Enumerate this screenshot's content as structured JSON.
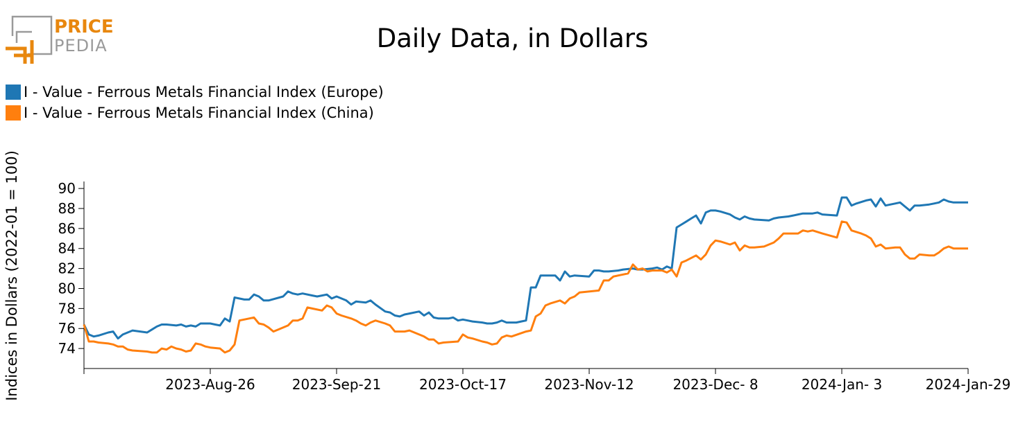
{
  "logo": {
    "line1": "PRICE",
    "line2": "PEDIA"
  },
  "chart_data": {
    "type": "line",
    "title": "Daily Data, in Dollars",
    "ylabel": "Indices in Dollars (2022-01 = 100)",
    "xlabel": "",
    "ylim": [
      72,
      90.7
    ],
    "yticks": [
      74,
      76,
      78,
      80,
      82,
      84,
      86,
      88,
      90
    ],
    "xlim": [
      0,
      182
    ],
    "xticks": [
      {
        "pos": 26,
        "label": "2023-Aug-26"
      },
      {
        "pos": 52,
        "label": "2023-Sep-21"
      },
      {
        "pos": 78,
        "label": "2023-Oct-17"
      },
      {
        "pos": 104,
        "label": "2023-Nov-12"
      },
      {
        "pos": 130,
        "label": "2023-Dec- 8"
      },
      {
        "pos": 156,
        "label": "2024-Jan- 3"
      },
      {
        "pos": 182,
        "label": "2024-Jan-29"
      }
    ],
    "legend_position": "top-left",
    "series": [
      {
        "name": "I - Value - Ferrous Metals Financial Index (Europe)",
        "color": "#1f77b4",
        "points": [
          [
            0,
            76.4
          ],
          [
            1,
            75.4
          ],
          [
            2,
            75.2
          ],
          [
            3,
            75.3
          ],
          [
            5,
            75.6
          ],
          [
            6,
            75.7
          ],
          [
            7,
            75.0
          ],
          [
            8,
            75.4
          ],
          [
            9,
            75.6
          ],
          [
            10,
            75.8
          ],
          [
            13,
            75.6
          ],
          [
            14,
            75.9
          ],
          [
            15,
            76.2
          ],
          [
            16,
            76.4
          ],
          [
            17,
            76.4
          ],
          [
            19,
            76.3
          ],
          [
            20,
            76.4
          ],
          [
            21,
            76.2
          ],
          [
            22,
            76.3
          ],
          [
            23,
            76.2
          ],
          [
            24,
            76.5
          ],
          [
            26,
            76.5
          ],
          [
            27,
            76.4
          ],
          [
            28,
            76.3
          ],
          [
            29,
            77.0
          ],
          [
            30,
            76.7
          ],
          [
            31,
            79.1
          ],
          [
            33,
            78.9
          ],
          [
            34,
            78.9
          ],
          [
            35,
            79.4
          ],
          [
            36,
            79.2
          ],
          [
            37,
            78.8
          ],
          [
            38,
            78.8
          ],
          [
            41,
            79.2
          ],
          [
            42,
            79.7
          ],
          [
            43,
            79.5
          ],
          [
            44,
            79.4
          ],
          [
            45,
            79.5
          ],
          [
            47,
            79.3
          ],
          [
            48,
            79.2
          ],
          [
            49,
            79.3
          ],
          [
            50,
            79.4
          ],
          [
            51,
            79.0
          ],
          [
            52,
            79.2
          ],
          [
            54,
            78.8
          ],
          [
            55,
            78.4
          ],
          [
            56,
            78.7
          ],
          [
            58,
            78.6
          ],
          [
            59,
            78.8
          ],
          [
            60,
            78.4
          ],
          [
            62,
            77.7
          ],
          [
            63,
            77.6
          ],
          [
            64,
            77.3
          ],
          [
            65,
            77.2
          ],
          [
            66,
            77.4
          ],
          [
            67,
            77.5
          ],
          [
            69,
            77.7
          ],
          [
            70,
            77.3
          ],
          [
            71,
            77.6
          ],
          [
            72,
            77.1
          ],
          [
            73,
            77.0
          ],
          [
            75,
            77.0
          ],
          [
            76,
            77.1
          ],
          [
            77,
            76.8
          ],
          [
            78,
            76.9
          ],
          [
            79,
            76.8
          ],
          [
            80,
            76.7
          ],
          [
            82,
            76.6
          ],
          [
            83,
            76.5
          ],
          [
            84,
            76.5
          ],
          [
            85,
            76.6
          ],
          [
            86,
            76.8
          ],
          [
            87,
            76.6
          ],
          [
            89,
            76.6
          ],
          [
            90,
            76.7
          ],
          [
            91,
            76.8
          ],
          [
            92,
            80.1
          ],
          [
            93,
            80.1
          ],
          [
            94,
            81.3
          ],
          [
            96,
            81.3
          ],
          [
            97,
            81.3
          ],
          [
            98,
            80.8
          ],
          [
            99,
            81.7
          ],
          [
            100,
            81.2
          ],
          [
            101,
            81.3
          ],
          [
            104,
            81.2
          ],
          [
            105,
            81.8
          ],
          [
            106,
            81.8
          ],
          [
            107,
            81.7
          ],
          [
            108,
            81.7
          ],
          [
            110,
            81.8
          ],
          [
            111,
            81.9
          ],
          [
            113,
            82.0
          ],
          [
            114,
            81.9
          ],
          [
            115,
            81.9
          ],
          [
            117,
            82.0
          ],
          [
            118,
            82.1
          ],
          [
            119,
            81.9
          ],
          [
            120,
            82.2
          ],
          [
            121,
            82.0
          ],
          [
            122,
            86.1
          ],
          [
            123,
            86.4
          ],
          [
            124,
            86.7
          ],
          [
            125,
            87.0
          ],
          [
            126,
            87.3
          ],
          [
            127,
            86.5
          ],
          [
            128,
            87.6
          ],
          [
            129,
            87.8
          ],
          [
            130,
            87.8
          ],
          [
            131,
            87.7
          ],
          [
            133,
            87.4
          ],
          [
            134,
            87.1
          ],
          [
            135,
            86.9
          ],
          [
            136,
            87.2
          ],
          [
            137,
            87.0
          ],
          [
            138,
            86.9
          ],
          [
            141,
            86.8
          ],
          [
            142,
            87.0
          ],
          [
            143,
            87.1
          ],
          [
            145,
            87.2
          ],
          [
            146,
            87.3
          ],
          [
            147,
            87.4
          ],
          [
            148,
            87.5
          ],
          [
            150,
            87.5
          ],
          [
            151,
            87.6
          ],
          [
            152,
            87.4
          ],
          [
            155,
            87.3
          ],
          [
            156,
            89.1
          ],
          [
            157,
            89.1
          ],
          [
            158,
            88.3
          ],
          [
            159,
            88.5
          ],
          [
            161,
            88.8
          ],
          [
            162,
            88.9
          ],
          [
            163,
            88.2
          ],
          [
            164,
            89.0
          ],
          [
            165,
            88.3
          ],
          [
            167,
            88.5
          ],
          [
            168,
            88.6
          ],
          [
            169,
            88.2
          ],
          [
            170,
            87.8
          ],
          [
            171,
            88.3
          ],
          [
            172,
            88.3
          ],
          [
            174,
            88.4
          ],
          [
            175,
            88.5
          ],
          [
            176,
            88.6
          ],
          [
            177,
            88.9
          ],
          [
            178,
            88.7
          ],
          [
            179,
            88.6
          ],
          [
            181,
            88.6
          ],
          [
            182,
            88.6
          ]
        ]
      },
      {
        "name": "I - Value - Ferrous Metals Financial Index (China)",
        "color": "#ff7f0e",
        "points": [
          [
            0,
            76.4
          ],
          [
            1,
            74.7
          ],
          [
            2,
            74.7
          ],
          [
            3,
            74.6
          ],
          [
            5,
            74.5
          ],
          [
            6,
            74.4
          ],
          [
            7,
            74.2
          ],
          [
            8,
            74.2
          ],
          [
            9,
            73.9
          ],
          [
            10,
            73.8
          ],
          [
            13,
            73.7
          ],
          [
            14,
            73.6
          ],
          [
            15,
            73.6
          ],
          [
            16,
            74.0
          ],
          [
            17,
            73.9
          ],
          [
            18,
            74.2
          ],
          [
            19,
            74.0
          ],
          [
            20,
            73.9
          ],
          [
            21,
            73.7
          ],
          [
            22,
            73.8
          ],
          [
            23,
            74.5
          ],
          [
            24,
            74.4
          ],
          [
            25,
            74.2
          ],
          [
            26,
            74.1
          ],
          [
            28,
            74.0
          ],
          [
            29,
            73.6
          ],
          [
            30,
            73.8
          ],
          [
            31,
            74.4
          ],
          [
            32,
            76.8
          ],
          [
            34,
            77.0
          ],
          [
            35,
            77.1
          ],
          [
            36,
            76.5
          ],
          [
            37,
            76.4
          ],
          [
            38,
            76.1
          ],
          [
            39,
            75.7
          ],
          [
            40,
            75.9
          ],
          [
            42,
            76.3
          ],
          [
            43,
            76.8
          ],
          [
            44,
            76.8
          ],
          [
            45,
            77.0
          ],
          [
            46,
            78.1
          ],
          [
            47,
            78.0
          ],
          [
            49,
            77.8
          ],
          [
            50,
            78.3
          ],
          [
            51,
            78.1
          ],
          [
            52,
            77.5
          ],
          [
            53,
            77.3
          ],
          [
            55,
            77.0
          ],
          [
            56,
            76.8
          ],
          [
            57,
            76.5
          ],
          [
            58,
            76.3
          ],
          [
            59,
            76.6
          ],
          [
            60,
            76.8
          ],
          [
            62,
            76.5
          ],
          [
            63,
            76.3
          ],
          [
            64,
            75.7
          ],
          [
            66,
            75.7
          ],
          [
            67,
            75.8
          ],
          [
            68,
            75.6
          ],
          [
            69,
            75.4
          ],
          [
            70,
            75.2
          ],
          [
            71,
            74.9
          ],
          [
            72,
            74.9
          ],
          [
            73,
            74.5
          ],
          [
            74,
            74.6
          ],
          [
            77,
            74.7
          ],
          [
            78,
            75.4
          ],
          [
            79,
            75.1
          ],
          [
            80,
            75.0
          ],
          [
            82,
            74.7
          ],
          [
            83,
            74.6
          ],
          [
            84,
            74.4
          ],
          [
            85,
            74.5
          ],
          [
            86,
            75.1
          ],
          [
            87,
            75.3
          ],
          [
            88,
            75.2
          ],
          [
            91,
            75.7
          ],
          [
            92,
            75.8
          ],
          [
            93,
            77.2
          ],
          [
            94,
            77.5
          ],
          [
            95,
            78.3
          ],
          [
            96,
            78.5
          ],
          [
            98,
            78.8
          ],
          [
            99,
            78.5
          ],
          [
            100,
            79.0
          ],
          [
            101,
            79.2
          ],
          [
            102,
            79.6
          ],
          [
            106,
            79.8
          ],
          [
            107,
            80.8
          ],
          [
            108,
            80.8
          ],
          [
            109,
            81.2
          ],
          [
            110,
            81.3
          ],
          [
            112,
            81.5
          ],
          [
            113,
            82.4
          ],
          [
            114,
            81.9
          ],
          [
            115,
            82.0
          ],
          [
            116,
            81.7
          ],
          [
            117,
            81.8
          ],
          [
            119,
            81.8
          ],
          [
            120,
            81.6
          ],
          [
            121,
            81.9
          ],
          [
            122,
            81.2
          ],
          [
            123,
            82.6
          ],
          [
            124,
            82.8
          ],
          [
            126,
            83.3
          ],
          [
            127,
            82.9
          ],
          [
            128,
            83.4
          ],
          [
            129,
            84.3
          ],
          [
            130,
            84.8
          ],
          [
            131,
            84.7
          ],
          [
            133,
            84.4
          ],
          [
            134,
            84.6
          ],
          [
            135,
            83.8
          ],
          [
            136,
            84.3
          ],
          [
            137,
            84.1
          ],
          [
            138,
            84.1
          ],
          [
            140,
            84.2
          ],
          [
            141,
            84.4
          ],
          [
            142,
            84.6
          ],
          [
            143,
            85.0
          ],
          [
            144,
            85.5
          ],
          [
            147,
            85.5
          ],
          [
            148,
            85.8
          ],
          [
            149,
            85.7
          ],
          [
            150,
            85.8
          ],
          [
            152,
            85.5
          ],
          [
            155,
            85.1
          ],
          [
            156,
            86.7
          ],
          [
            157,
            86.6
          ],
          [
            158,
            85.8
          ],
          [
            160,
            85.5
          ],
          [
            161,
            85.3
          ],
          [
            162,
            85.0
          ],
          [
            163,
            84.2
          ],
          [
            164,
            84.4
          ],
          [
            165,
            84.0
          ],
          [
            167,
            84.1
          ],
          [
            168,
            84.1
          ],
          [
            169,
            83.4
          ],
          [
            170,
            83.0
          ],
          [
            171,
            83.0
          ],
          [
            172,
            83.4
          ],
          [
            174,
            83.3
          ],
          [
            175,
            83.3
          ],
          [
            176,
            83.6
          ],
          [
            177,
            84.0
          ],
          [
            178,
            84.2
          ],
          [
            179,
            84.0
          ],
          [
            181,
            84.0
          ],
          [
            182,
            84.0
          ]
        ]
      }
    ]
  }
}
